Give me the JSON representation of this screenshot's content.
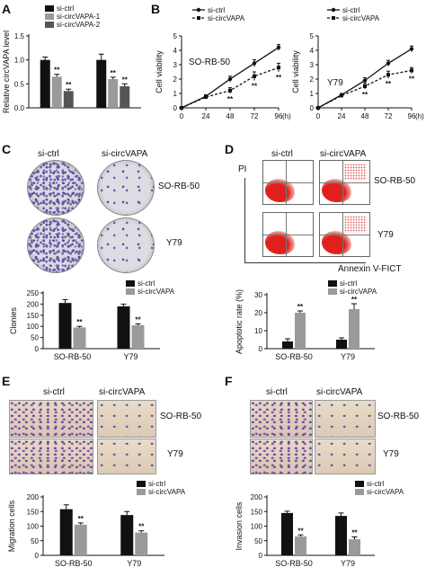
{
  "panels": {
    "A": "A",
    "B": "B",
    "C": "C",
    "D": "D",
    "E": "E",
    "F": "F"
  },
  "labels": {
    "si_ctrl": "si-ctrl",
    "si_circvapa": "si-circVAPA",
    "so_rb50": "SO-RB-50",
    "y79": "Y79",
    "pi": "PI",
    "annexin": "Annexin V-FICT",
    "sig": "**"
  },
  "colors": {
    "black": "#111111",
    "gray": "#9a9a9a",
    "darkgray": "#555555"
  },
  "chart_data": [
    {
      "id": "A",
      "type": "bar",
      "ylabel": "Relative circVAPA level",
      "ylim": [
        0,
        1.5
      ],
      "yticks": [
        "0.0",
        "0.5",
        "1.0",
        "1.5"
      ],
      "groups": 2,
      "series": [
        {
          "name": "si-ctrl",
          "color": "#111111",
          "values": [
            1.0,
            1.0
          ],
          "err": [
            0.06,
            0.12
          ]
        },
        {
          "name": "si-circVAPA-1",
          "color": "#9a9a9a",
          "values": [
            0.65,
            0.6
          ],
          "err": [
            0.05,
            0.04
          ]
        },
        {
          "name": "si-circVAPA-2",
          "color": "#555555",
          "values": [
            0.35,
            0.45
          ],
          "err": [
            0.04,
            0.05
          ]
        }
      ]
    },
    {
      "id": "B1",
      "type": "line",
      "title": "SO-RB-50",
      "ylabel": "Cell viability",
      "xlabel": "(h)",
      "x": [
        0,
        24,
        48,
        72,
        96
      ],
      "ylim": [
        0,
        5
      ],
      "yticks": [
        "0",
        "1",
        "2",
        "3",
        "4",
        "5"
      ],
      "series": [
        {
          "name": "si-ctrl",
          "values": [
            0,
            0.8,
            2.0,
            3.1,
            4.2
          ],
          "err": [
            0,
            0.1,
            0.2,
            0.25,
            0.2
          ]
        },
        {
          "name": "si-circVAPA",
          "values": [
            0,
            0.75,
            1.2,
            2.2,
            2.8
          ],
          "err": [
            0,
            0.1,
            0.2,
            0.3,
            0.3
          ]
        }
      ]
    },
    {
      "id": "B2",
      "type": "line",
      "title": "Y79",
      "ylabel": "Cell viability",
      "xlabel": "(h)",
      "x": [
        0,
        24,
        48,
        72,
        96
      ],
      "ylim": [
        0,
        5
      ],
      "yticks": [
        "0",
        "1",
        "2",
        "3",
        "4",
        "5"
      ],
      "series": [
        {
          "name": "si-ctrl",
          "values": [
            0,
            0.9,
            1.9,
            3.1,
            4.1
          ],
          "err": [
            0,
            0.1,
            0.2,
            0.2,
            0.2
          ]
        },
        {
          "name": "si-circVAPA",
          "values": [
            0,
            0.85,
            1.5,
            2.3,
            2.6
          ],
          "err": [
            0,
            0.1,
            0.2,
            0.25,
            0.2
          ]
        }
      ]
    },
    {
      "id": "C",
      "type": "bar",
      "ylabel": "Clonies",
      "ylim": [
        0,
        250
      ],
      "yticks": [
        "0",
        "50",
        "100",
        "150",
        "200",
        "250"
      ],
      "categories": [
        "SO-RB-50",
        "Y79"
      ],
      "series": [
        {
          "name": "si-ctrl",
          "color": "#111111",
          "values": [
            205,
            190
          ],
          "err": [
            15,
            10
          ]
        },
        {
          "name": "si-circVAPA",
          "color": "#9a9a9a",
          "values": [
            95,
            105
          ],
          "err": [
            5,
            6
          ]
        }
      ]
    },
    {
      "id": "D",
      "type": "bar",
      "ylabel": "Apoptotic rate (%)",
      "ylim": [
        0,
        30
      ],
      "yticks": [
        "0",
        "10",
        "20",
        "30"
      ],
      "categories": [
        "SO-RB-50",
        "Y79"
      ],
      "series": [
        {
          "name": "si-ctrl",
          "color": "#111111",
          "values": [
            4,
            5
          ],
          "err": [
            1.5,
            1
          ]
        },
        {
          "name": "si-circVAPA",
          "color": "#9a9a9a",
          "values": [
            20,
            22
          ],
          "err": [
            1,
            3
          ]
        }
      ]
    },
    {
      "id": "E",
      "type": "bar",
      "ylabel": "Migration cells",
      "ylim": [
        0,
        200
      ],
      "yticks": [
        "0",
        "50",
        "100",
        "150",
        "200"
      ],
      "categories": [
        "SO-RB-50",
        "Y79"
      ],
      "series": [
        {
          "name": "si-ctrl",
          "color": "#111111",
          "values": [
            158,
            138
          ],
          "err": [
            15,
            12
          ]
        },
        {
          "name": "si-circVAPA",
          "color": "#9a9a9a",
          "values": [
            105,
            78
          ],
          "err": [
            6,
            6
          ]
        }
      ]
    },
    {
      "id": "F",
      "type": "bar",
      "ylabel": "Invasion cells",
      "ylim": [
        0,
        200
      ],
      "yticks": [
        "0",
        "50",
        "100",
        "150",
        "200"
      ],
      "categories": [
        "SO-RB-50",
        "Y79"
      ],
      "series": [
        {
          "name": "si-ctrl",
          "color": "#111111",
          "values": [
            145,
            135
          ],
          "err": [
            6,
            10
          ]
        },
        {
          "name": "si-circVAPA",
          "color": "#9a9a9a",
          "values": [
            65,
            55
          ],
          "err": [
            5,
            8
          ]
        }
      ]
    }
  ]
}
